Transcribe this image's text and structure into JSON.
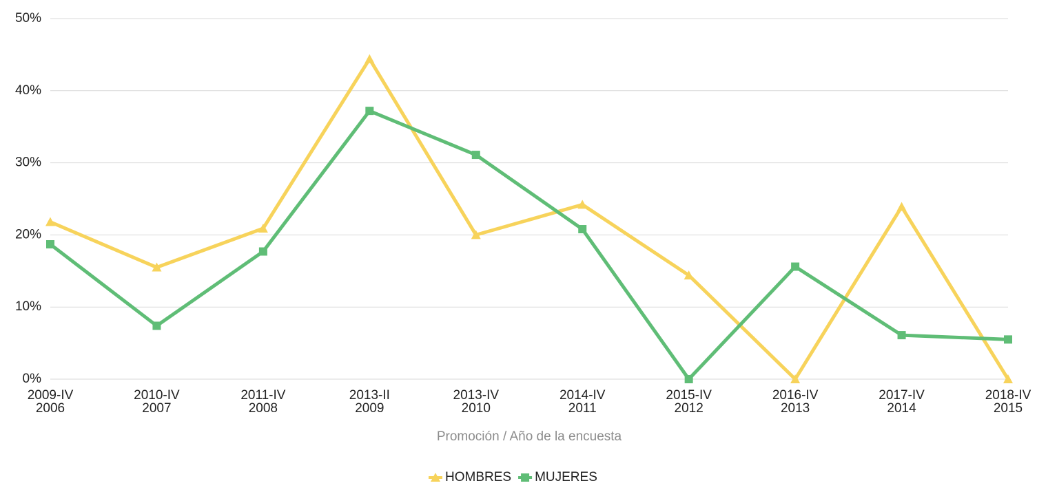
{
  "chart_data": {
    "type": "line",
    "x_label": "Promoción / Año de la encuesta",
    "categories": [
      [
        "2009-IV",
        "2006"
      ],
      [
        "2010-IV",
        "2007"
      ],
      [
        "2011-IV",
        "2008"
      ],
      [
        "2013-II",
        "2009"
      ],
      [
        "2013-IV",
        "2010"
      ],
      [
        "2014-IV",
        "2011"
      ],
      [
        "2015-IV",
        "2012"
      ],
      [
        "2016-IV",
        "2013"
      ],
      [
        "2017-IV",
        "2014"
      ],
      [
        "2018-IV",
        "2015"
      ]
    ],
    "series": [
      {
        "name": "HOMBRES",
        "color": "#f7d35b",
        "marker": "triangle",
        "values": [
          21.8,
          15.5,
          20.9,
          44.4,
          20.0,
          24.2,
          14.4,
          0,
          23.9,
          0
        ]
      },
      {
        "name": "MUJERES",
        "color": "#5fbd76",
        "marker": "square",
        "values": [
          18.7,
          7.4,
          17.7,
          37.2,
          31.1,
          20.8,
          0,
          15.6,
          6.1,
          5.5
        ]
      }
    ],
    "ylim": [
      0,
      50
    ],
    "yticks": [
      {
        "value": 0,
        "label": "0%"
      },
      {
        "value": 10,
        "label": "10%"
      },
      {
        "value": 20,
        "label": "20%"
      },
      {
        "value": 30,
        "label": "30%"
      },
      {
        "value": 40,
        "label": "40%"
      },
      {
        "value": 50,
        "label": "50%"
      }
    ],
    "grid": true,
    "legend": "bottom"
  }
}
